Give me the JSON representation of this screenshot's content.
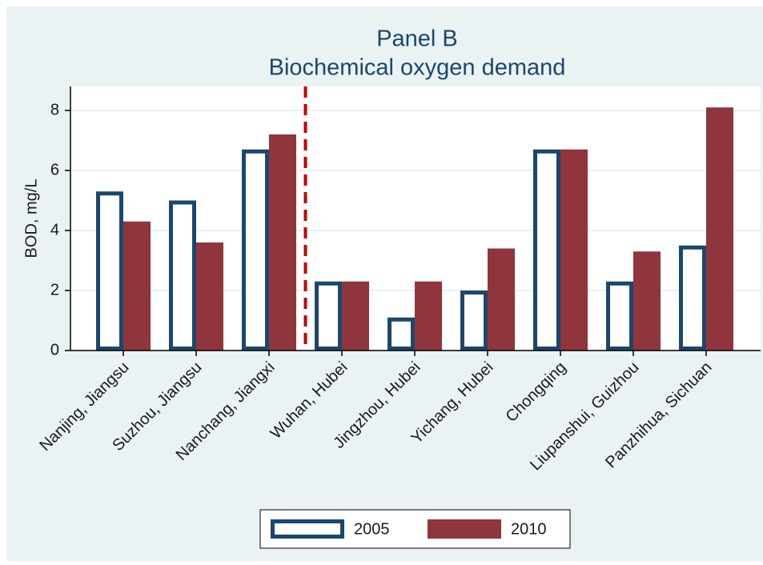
{
  "chart_data": {
    "type": "bar",
    "title": "Panel B",
    "subtitle": "Biochemical oxygen demand",
    "y_label": "BOD, mg/L",
    "categories": [
      "Nanjing, Jiangsu",
      "Suzhou, Jiangsu",
      "Nanchang, Jiangxi",
      "Wuhan, Hubei",
      "Jingzhou, Hubei",
      "Yichang, Hubei",
      "Chongqing",
      "Liupanshui, Guizhou",
      "Panzhihua, Sichuan"
    ],
    "series": [
      {
        "name": "2005",
        "color": "#1a476f",
        "fill": "#ffffff",
        "values": [
          5.3,
          5.0,
          6.7,
          2.3,
          1.1,
          2.0,
          6.7,
          2.3,
          3.5
        ]
      },
      {
        "name": "2010",
        "color": "#90353b",
        "fill": "#90353b",
        "values": [
          4.3,
          3.6,
          7.2,
          2.3,
          2.3,
          3.4,
          6.7,
          3.3,
          8.1
        ]
      }
    ],
    "ylim": [
      0,
      8.8
    ],
    "yticks": [
      0,
      2,
      4,
      6,
      8
    ],
    "grid": true,
    "reference_line": {
      "x": 2.5,
      "color": "#c10000",
      "style": "dashed"
    },
    "legend": "bottom"
  }
}
